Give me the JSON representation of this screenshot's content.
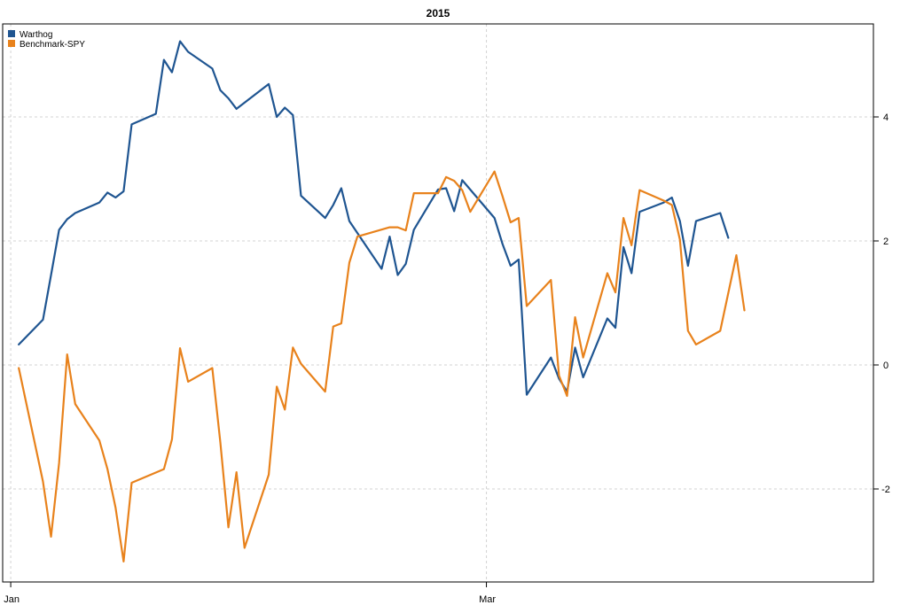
{
  "chart_data": {
    "type": "line",
    "title": "2015",
    "xlabel": "",
    "ylabel": "",
    "x_axis": {
      "type": "date",
      "range": [
        "2014-12-31",
        "2015-04-18"
      ],
      "ticks": [
        {
          "value": "2015-01-01",
          "label": "Jan"
        },
        {
          "value": "2015-03-01",
          "label": "Mar"
        }
      ]
    },
    "y_axis": {
      "range": [
        -3.5,
        5.5
      ],
      "ticks": [
        -2,
        0,
        2,
        4
      ],
      "side": "right"
    },
    "grid": true,
    "legend": {
      "position": "top-left"
    },
    "series": [
      {
        "name": "Warthog",
        "color": "#1f5591",
        "points": [
          [
            "2015-01-02",
            0.33
          ],
          [
            "2015-01-05",
            0.73
          ],
          [
            "2015-01-06",
            1.45
          ],
          [
            "2015-01-07",
            2.18
          ],
          [
            "2015-01-08",
            2.35
          ],
          [
            "2015-01-09",
            2.45
          ],
          [
            "2015-01-12",
            2.62
          ],
          [
            "2015-01-13",
            2.78
          ],
          [
            "2015-01-14",
            2.7
          ],
          [
            "2015-01-15",
            2.8
          ],
          [
            "2015-01-16",
            3.88
          ],
          [
            "2015-01-19",
            4.05
          ],
          [
            "2015-01-20",
            4.92
          ],
          [
            "2015-01-21",
            4.72
          ],
          [
            "2015-01-22",
            5.22
          ],
          [
            "2015-01-23",
            5.05
          ],
          [
            "2015-01-26",
            4.78
          ],
          [
            "2015-01-27",
            4.43
          ],
          [
            "2015-01-28",
            4.3
          ],
          [
            "2015-01-29",
            4.13
          ],
          [
            "2015-02-02",
            4.53
          ],
          [
            "2015-02-03",
            4.0
          ],
          [
            "2015-02-04",
            4.15
          ],
          [
            "2015-02-05",
            4.03
          ],
          [
            "2015-02-06",
            2.73
          ],
          [
            "2015-02-09",
            2.37
          ],
          [
            "2015-02-10",
            2.58
          ],
          [
            "2015-02-11",
            2.85
          ],
          [
            "2015-02-12",
            2.32
          ],
          [
            "2015-02-16",
            1.55
          ],
          [
            "2015-02-17",
            2.07
          ],
          [
            "2015-02-18",
            1.45
          ],
          [
            "2015-02-19",
            1.63
          ],
          [
            "2015-02-20",
            2.18
          ],
          [
            "2015-02-23",
            2.83
          ],
          [
            "2015-02-24",
            2.85
          ],
          [
            "2015-02-25",
            2.48
          ],
          [
            "2015-02-26",
            2.98
          ],
          [
            "2015-03-02",
            2.37
          ],
          [
            "2015-03-03",
            1.95
          ],
          [
            "2015-03-04",
            1.6
          ],
          [
            "2015-03-05",
            1.7
          ],
          [
            "2015-03-06",
            -0.48
          ],
          [
            "2015-03-09",
            0.12
          ],
          [
            "2015-03-10",
            -0.22
          ],
          [
            "2015-03-11",
            -0.43
          ],
          [
            "2015-03-12",
            0.28
          ],
          [
            "2015-03-13",
            -0.2
          ],
          [
            "2015-03-16",
            0.75
          ],
          [
            "2015-03-17",
            0.6
          ],
          [
            "2015-03-18",
            1.9
          ],
          [
            "2015-03-19",
            1.48
          ],
          [
            "2015-03-20",
            2.47
          ],
          [
            "2015-03-23",
            2.62
          ],
          [
            "2015-03-24",
            2.7
          ],
          [
            "2015-03-25",
            2.32
          ],
          [
            "2015-03-26",
            1.6
          ],
          [
            "2015-03-27",
            2.32
          ],
          [
            "2015-03-30",
            2.45
          ],
          [
            "2015-03-31",
            2.05
          ]
        ]
      },
      {
        "name": "Benchmark-SPY",
        "color": "#e8821c",
        "points": [
          [
            "2015-01-02",
            -0.05
          ],
          [
            "2015-01-05",
            -1.88
          ],
          [
            "2015-01-06",
            -2.77
          ],
          [
            "2015-01-07",
            -1.58
          ],
          [
            "2015-01-08",
            0.17
          ],
          [
            "2015-01-09",
            -0.63
          ],
          [
            "2015-01-12",
            -1.22
          ],
          [
            "2015-01-13",
            -1.68
          ],
          [
            "2015-01-14",
            -2.3
          ],
          [
            "2015-01-15",
            -3.17
          ],
          [
            "2015-01-16",
            -1.9
          ],
          [
            "2015-01-20",
            -1.68
          ],
          [
            "2015-01-21",
            -1.2
          ],
          [
            "2015-01-22",
            0.27
          ],
          [
            "2015-01-23",
            -0.27
          ],
          [
            "2015-01-26",
            -0.05
          ],
          [
            "2015-01-27",
            -1.25
          ],
          [
            "2015-01-28",
            -2.62
          ],
          [
            "2015-01-29",
            -1.73
          ],
          [
            "2015-01-30",
            -2.95
          ],
          [
            "2015-02-02",
            -1.77
          ],
          [
            "2015-02-03",
            -0.35
          ],
          [
            "2015-02-04",
            -0.72
          ],
          [
            "2015-02-05",
            0.28
          ],
          [
            "2015-02-06",
            0.02
          ],
          [
            "2015-02-09",
            -0.43
          ],
          [
            "2015-02-10",
            0.62
          ],
          [
            "2015-02-11",
            0.67
          ],
          [
            "2015-02-12",
            1.65
          ],
          [
            "2015-02-13",
            2.07
          ],
          [
            "2015-02-17",
            2.22
          ],
          [
            "2015-02-18",
            2.22
          ],
          [
            "2015-02-19",
            2.17
          ],
          [
            "2015-02-20",
            2.77
          ],
          [
            "2015-02-23",
            2.77
          ],
          [
            "2015-02-24",
            3.03
          ],
          [
            "2015-02-25",
            2.97
          ],
          [
            "2015-02-26",
            2.82
          ],
          [
            "2015-02-27",
            2.47
          ],
          [
            "2015-03-02",
            3.12
          ],
          [
            "2015-03-03",
            2.72
          ],
          [
            "2015-03-04",
            2.3
          ],
          [
            "2015-03-05",
            2.37
          ],
          [
            "2015-03-06",
            0.95
          ],
          [
            "2015-03-09",
            1.37
          ],
          [
            "2015-03-10",
            -0.17
          ],
          [
            "2015-03-11",
            -0.5
          ],
          [
            "2015-03-12",
            0.77
          ],
          [
            "2015-03-13",
            0.12
          ],
          [
            "2015-03-16",
            1.48
          ],
          [
            "2015-03-17",
            1.17
          ],
          [
            "2015-03-18",
            2.37
          ],
          [
            "2015-03-19",
            1.93
          ],
          [
            "2015-03-20",
            2.82
          ],
          [
            "2015-03-23",
            2.65
          ],
          [
            "2015-03-24",
            2.58
          ],
          [
            "2015-03-25",
            2.02
          ],
          [
            "2015-03-26",
            0.55
          ],
          [
            "2015-03-27",
            0.33
          ],
          [
            "2015-03-30",
            0.55
          ],
          [
            "2015-04-01",
            1.77
          ],
          [
            "2015-04-02",
            0.88
          ]
        ]
      }
    ]
  }
}
